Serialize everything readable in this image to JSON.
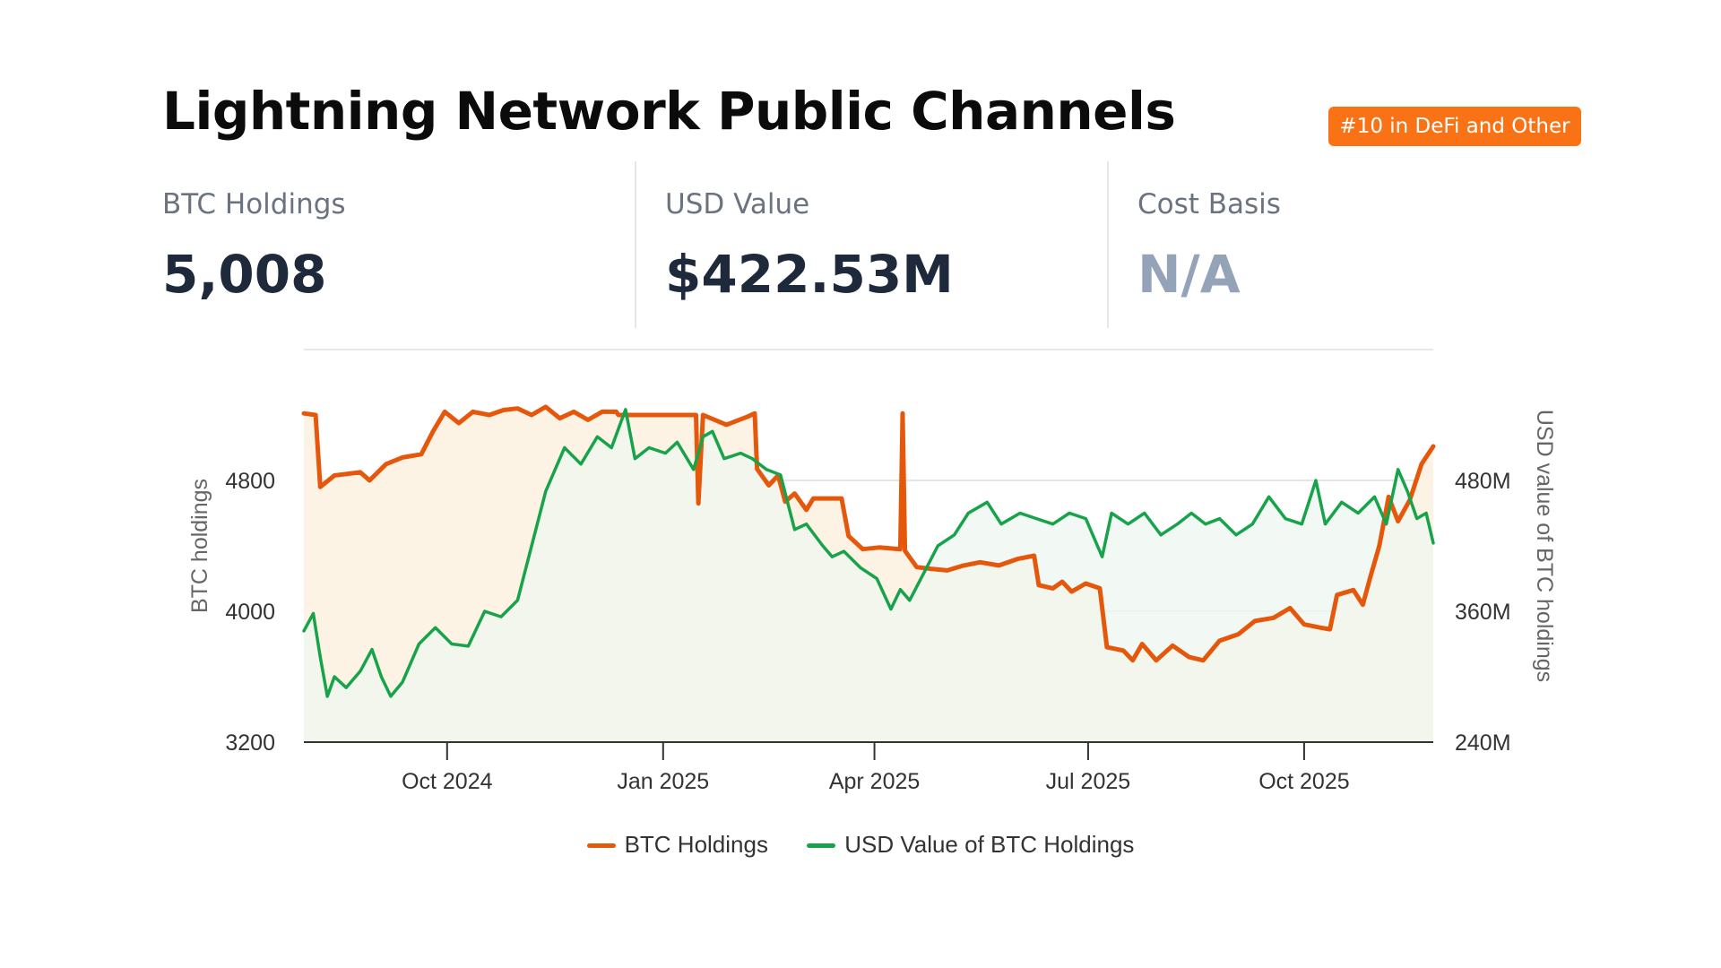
{
  "header": {
    "title": "Lightning Network Public Channels",
    "rank_badge": "#10 in DeFi and Other"
  },
  "stats": [
    {
      "label": "BTC Holdings",
      "value": "5,008"
    },
    {
      "label": "USD Value",
      "value": "$422.53M"
    },
    {
      "label": "Cost Basis",
      "value": "N/A"
    }
  ],
  "colors": {
    "badge": "#f97316",
    "btc_series": "#e5580c",
    "usd_series": "#16a34a",
    "btc_fill": "#fdf3e4",
    "usd_fill": "#eef7f0",
    "gridline": "#dddddd"
  },
  "chart_data": {
    "type": "line",
    "title": "",
    "x_range": [
      "2024-08-01",
      "2025-11-25"
    ],
    "x_ticks": [
      "Oct 2024",
      "Jan 2025",
      "Apr 2025",
      "Jul 2025",
      "Oct 2025"
    ],
    "x_tick_dates": [
      "2024-10-01",
      "2025-01-01",
      "2025-04-01",
      "2025-07-01",
      "2025-10-01"
    ],
    "y_left": {
      "label": "BTC holdings",
      "range": [
        3200,
        5600
      ],
      "ticks": [
        "3200",
        "4000",
        "4800"
      ],
      "tick_values": [
        3200,
        4000,
        4800
      ]
    },
    "y_right": {
      "label": "USD value of BTC holdings",
      "range": [
        240,
        600
      ],
      "ticks": [
        "240M",
        "360M",
        "480M"
      ],
      "tick_values": [
        240,
        360,
        480
      ]
    },
    "grid": true,
    "legend_position": "bottom",
    "series": [
      {
        "name": "BTC Holdings",
        "axis": "left",
        "points": [
          [
            "2024-08-01",
            5210
          ],
          [
            "2024-08-06",
            5200
          ],
          [
            "2024-08-08",
            4760
          ],
          [
            "2024-08-14",
            4830
          ],
          [
            "2024-08-25",
            4850
          ],
          [
            "2024-08-29",
            4800
          ],
          [
            "2024-09-05",
            4900
          ],
          [
            "2024-09-12",
            4940
          ],
          [
            "2024-09-20",
            4960
          ],
          [
            "2024-09-25",
            5100
          ],
          [
            "2024-09-30",
            5220
          ],
          [
            "2024-10-06",
            5150
          ],
          [
            "2024-10-12",
            5220
          ],
          [
            "2024-10-19",
            5200
          ],
          [
            "2024-10-25",
            5230
          ],
          [
            "2024-10-31",
            5240
          ],
          [
            "2024-11-06",
            5200
          ],
          [
            "2024-11-12",
            5250
          ],
          [
            "2024-11-18",
            5180
          ],
          [
            "2024-11-24",
            5220
          ],
          [
            "2024-11-30",
            5170
          ],
          [
            "2024-12-06",
            5220
          ],
          [
            "2024-12-12",
            5220
          ],
          [
            "2024-12-13",
            5200
          ],
          [
            "2025-01-15",
            5200
          ],
          [
            "2025-01-16",
            4660
          ],
          [
            "2025-01-18",
            5200
          ],
          [
            "2025-01-28",
            5140
          ],
          [
            "2025-02-06",
            5190
          ],
          [
            "2025-02-09",
            5210
          ],
          [
            "2025-02-10",
            4870
          ],
          [
            "2025-02-15",
            4770
          ],
          [
            "2025-02-19",
            4830
          ],
          [
            "2025-02-22",
            4670
          ],
          [
            "2025-02-26",
            4720
          ],
          [
            "2025-03-03",
            4620
          ],
          [
            "2025-03-06",
            4690
          ],
          [
            "2025-03-18",
            4690
          ],
          [
            "2025-03-21",
            4460
          ],
          [
            "2025-03-27",
            4380
          ],
          [
            "2025-04-03",
            4390
          ],
          [
            "2025-04-12",
            4380
          ],
          [
            "2025-04-13",
            5210
          ],
          [
            "2025-04-14",
            4370
          ],
          [
            "2025-04-19",
            4270
          ],
          [
            "2025-04-25",
            4260
          ],
          [
            "2025-05-02",
            4250
          ],
          [
            "2025-05-09",
            4280
          ],
          [
            "2025-05-16",
            4300
          ],
          [
            "2025-05-24",
            4280
          ],
          [
            "2025-06-01",
            4320
          ],
          [
            "2025-06-08",
            4340
          ],
          [
            "2025-06-10",
            4160
          ],
          [
            "2025-06-16",
            4140
          ],
          [
            "2025-06-20",
            4180
          ],
          [
            "2025-06-24",
            4120
          ],
          [
            "2025-06-30",
            4170
          ],
          [
            "2025-07-06",
            4140
          ],
          [
            "2025-07-09",
            3780
          ],
          [
            "2025-07-16",
            3760
          ],
          [
            "2025-07-20",
            3700
          ],
          [
            "2025-07-24",
            3800
          ],
          [
            "2025-07-30",
            3700
          ],
          [
            "2025-08-06",
            3790
          ],
          [
            "2025-08-13",
            3720
          ],
          [
            "2025-08-19",
            3700
          ],
          [
            "2025-08-26",
            3820
          ],
          [
            "2025-09-03",
            3860
          ],
          [
            "2025-09-10",
            3940
          ],
          [
            "2025-09-18",
            3960
          ],
          [
            "2025-09-25",
            4020
          ],
          [
            "2025-10-01",
            3920
          ],
          [
            "2025-10-08",
            3900
          ],
          [
            "2025-10-12",
            3890
          ],
          [
            "2025-10-15",
            4100
          ],
          [
            "2025-10-22",
            4130
          ],
          [
            "2025-10-26",
            4040
          ],
          [
            "2025-10-29",
            4200
          ],
          [
            "2025-11-02",
            4400
          ],
          [
            "2025-11-06",
            4700
          ],
          [
            "2025-11-10",
            4550
          ],
          [
            "2025-11-15",
            4680
          ],
          [
            "2025-11-20",
            4900
          ],
          [
            "2025-11-25",
            5008
          ]
        ]
      },
      {
        "name": "USD Value of BTC Holdings",
        "axis": "right",
        "points": [
          [
            "2024-08-01",
            342
          ],
          [
            "2024-08-05",
            358
          ],
          [
            "2024-08-08",
            318
          ],
          [
            "2024-08-11",
            282
          ],
          [
            "2024-08-14",
            300
          ],
          [
            "2024-08-19",
            290
          ],
          [
            "2024-08-25",
            305
          ],
          [
            "2024-08-30",
            325
          ],
          [
            "2024-09-03",
            300
          ],
          [
            "2024-09-07",
            282
          ],
          [
            "2024-09-12",
            295
          ],
          [
            "2024-09-19",
            330
          ],
          [
            "2024-09-26",
            345
          ],
          [
            "2024-10-03",
            330
          ],
          [
            "2024-10-10",
            328
          ],
          [
            "2024-10-17",
            360
          ],
          [
            "2024-10-24",
            355
          ],
          [
            "2024-10-31",
            370
          ],
          [
            "2024-11-06",
            420
          ],
          [
            "2024-11-12",
            470
          ],
          [
            "2024-11-20",
            510
          ],
          [
            "2024-11-27",
            495
          ],
          [
            "2024-12-04",
            520
          ],
          [
            "2024-12-10",
            510
          ],
          [
            "2024-12-16",
            545
          ],
          [
            "2024-12-20",
            500
          ],
          [
            "2024-12-26",
            510
          ],
          [
            "2025-01-02",
            505
          ],
          [
            "2025-01-07",
            515
          ],
          [
            "2025-01-14",
            490
          ],
          [
            "2025-01-18",
            520
          ],
          [
            "2025-01-22",
            525
          ],
          [
            "2025-01-27",
            500
          ],
          [
            "2025-02-03",
            505
          ],
          [
            "2025-02-08",
            500
          ],
          [
            "2025-02-14",
            490
          ],
          [
            "2025-02-20",
            485
          ],
          [
            "2025-02-26",
            435
          ],
          [
            "2025-03-03",
            440
          ],
          [
            "2025-03-10",
            420
          ],
          [
            "2025-03-14",
            410
          ],
          [
            "2025-03-19",
            415
          ],
          [
            "2025-03-26",
            400
          ],
          [
            "2025-04-02",
            390
          ],
          [
            "2025-04-08",
            362
          ],
          [
            "2025-04-12",
            380
          ],
          [
            "2025-04-16",
            370
          ],
          [
            "2025-04-22",
            395
          ],
          [
            "2025-04-28",
            420
          ],
          [
            "2025-05-05",
            430
          ],
          [
            "2025-05-11",
            450
          ],
          [
            "2025-05-19",
            460
          ],
          [
            "2025-05-25",
            440
          ],
          [
            "2025-06-02",
            450
          ],
          [
            "2025-06-09",
            445
          ],
          [
            "2025-06-16",
            440
          ],
          [
            "2025-06-23",
            450
          ],
          [
            "2025-06-30",
            445
          ],
          [
            "2025-07-07",
            410
          ],
          [
            "2025-07-11",
            450
          ],
          [
            "2025-07-18",
            440
          ],
          [
            "2025-07-25",
            450
          ],
          [
            "2025-08-01",
            430
          ],
          [
            "2025-08-08",
            440
          ],
          [
            "2025-08-14",
            450
          ],
          [
            "2025-08-20",
            440
          ],
          [
            "2025-08-26",
            445
          ],
          [
            "2025-09-02",
            430
          ],
          [
            "2025-09-09",
            440
          ],
          [
            "2025-09-16",
            465
          ],
          [
            "2025-09-23",
            445
          ],
          [
            "2025-09-30",
            440
          ],
          [
            "2025-10-06",
            480
          ],
          [
            "2025-10-10",
            440
          ],
          [
            "2025-10-17",
            460
          ],
          [
            "2025-10-24",
            450
          ],
          [
            "2025-10-31",
            465
          ],
          [
            "2025-11-05",
            440
          ],
          [
            "2025-11-10",
            490
          ],
          [
            "2025-11-14",
            470
          ],
          [
            "2025-11-18",
            445
          ],
          [
            "2025-11-22",
            450
          ],
          [
            "2025-11-25",
            422.53
          ]
        ]
      }
    ]
  }
}
